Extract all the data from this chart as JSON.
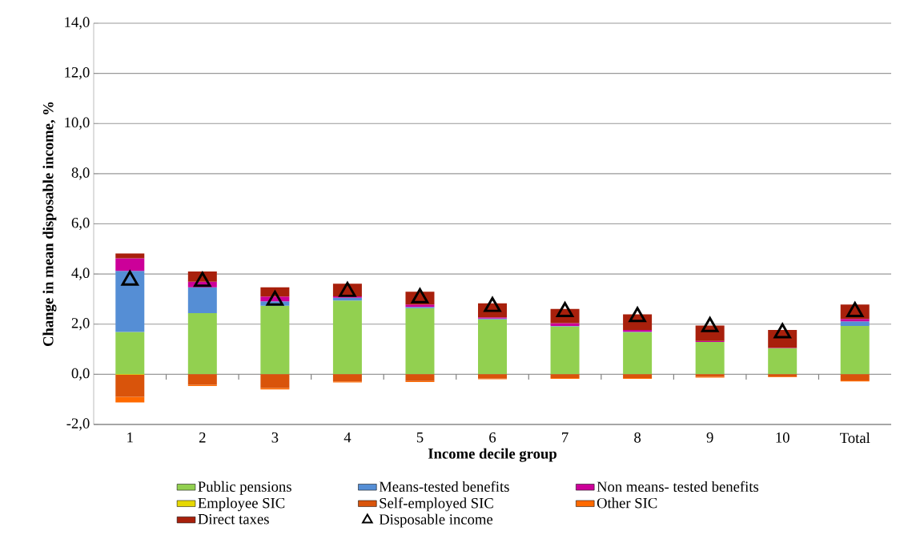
{
  "chart_data": {
    "type": "bar",
    "stacked": true,
    "xlabel": "Income decile group",
    "ylabel": "Change in mean disposable income, %",
    "categories": [
      "1",
      "2",
      "3",
      "4",
      "5",
      "6",
      "7",
      "8",
      "9",
      "10",
      "Total"
    ],
    "ylim": [
      -2,
      14
    ],
    "yticks": [
      {
        "value": -2,
        "label": "-2,0"
      },
      {
        "value": 0,
        "label": "0,0"
      },
      {
        "value": 2,
        "label": "2,0"
      },
      {
        "value": 4,
        "label": "4,0"
      },
      {
        "value": 6,
        "label": "6,0"
      },
      {
        "value": 8,
        "label": "8,0"
      },
      {
        "value": 10,
        "label": "10,0"
      },
      {
        "value": 12,
        "label": "12,0"
      },
      {
        "value": 14,
        "label": "14,0"
      }
    ],
    "grid": "y",
    "legend": "bottom",
    "series": [
      {
        "name": "Public pensions",
        "color": "#92d050",
        "values": [
          1.69,
          2.44,
          2.73,
          2.94,
          2.64,
          2.19,
          1.91,
          1.68,
          1.29,
          1.04,
          1.93
        ]
      },
      {
        "name": "Means-tested benefits",
        "color": "#558ed5",
        "values": [
          2.43,
          1.03,
          0.18,
          0.11,
          0.05,
          0.03,
          0.02,
          0.02,
          null,
          null,
          0.18
        ]
      },
      {
        "name": "Non means- tested benefits",
        "color": "#cc0099",
        "values": [
          0.51,
          0.22,
          0.19,
          0.06,
          0.09,
          0.05,
          0.11,
          0.07,
          0.04,
          0.02,
          0.1
        ]
      },
      {
        "name": "Employee SIC",
        "color": "#e6d800",
        "values": [
          -0.02,
          0,
          0,
          0,
          0,
          0,
          0,
          0,
          0,
          0,
          0
        ]
      },
      {
        "name": "Self-employed SIC",
        "color": "#d9540b",
        "values": [
          -0.88,
          -0.42,
          -0.55,
          -0.28,
          -0.27,
          -0.17,
          -0.15,
          -0.15,
          -0.1,
          -0.09,
          -0.24
        ]
      },
      {
        "name": "Other SIC",
        "color": "#ff6a00",
        "values": [
          -0.22,
          -0.05,
          -0.05,
          -0.04,
          -0.04,
          -0.03,
          -0.03,
          -0.03,
          -0.03,
          -0.03,
          -0.04
        ]
      },
      {
        "name": "Direct taxes",
        "color": "#a8200c",
        "values": [
          0.19,
          0.41,
          0.37,
          0.5,
          0.51,
          0.56,
          0.57,
          0.62,
          0.61,
          0.71,
          0.57
        ]
      },
      {
        "name": "Disposable income",
        "type": "scatter",
        "marker": "triangle",
        "color": "#000000",
        "values": [
          3.75,
          3.7,
          2.95,
          3.3,
          3.05,
          2.7,
          2.5,
          2.3,
          1.9,
          1.65,
          2.5
        ]
      }
    ]
  }
}
